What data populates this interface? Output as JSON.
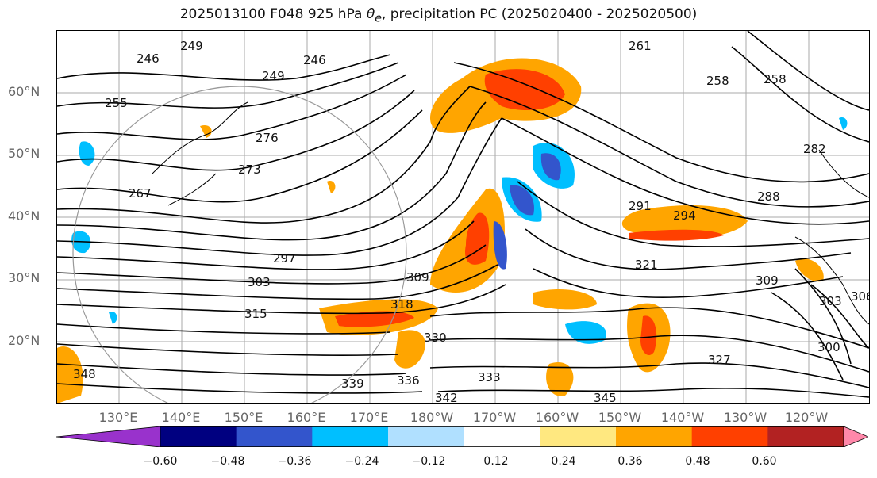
{
  "title": {
    "prefix": "2025013100 F048 925 hPa ",
    "symbol": "θ",
    "subscript": "e",
    "suffix": ", precipitation PC (2025020400 - 2025020500)"
  },
  "map": {
    "lat_labels": [
      "60°N",
      "50°N",
      "40°N",
      "30°N",
      "20°N"
    ],
    "lon_labels": [
      "130°E",
      "140°E",
      "150°E",
      "160°E",
      "170°E",
      "180°W",
      "170°W",
      "160°W",
      "150°W",
      "140°W",
      "130°W",
      "120°W"
    ],
    "contour_labels": [
      "246",
      "249",
      "246",
      "249",
      "255",
      "258",
      "267",
      "273",
      "276",
      "291",
      "294",
      "297",
      "303",
      "309",
      "315",
      "318",
      "321",
      "327",
      "330",
      "333",
      "336",
      "339",
      "342",
      "345",
      "348",
      "300",
      "303",
      "306",
      "309",
      "288",
      "282",
      "258",
      "261"
    ]
  },
  "colorbar": {
    "ticks": [
      "−0.60",
      "−0.48",
      "−0.36",
      "−0.24",
      "−0.12",
      "0.12",
      "0.24",
      "0.36",
      "0.48",
      "0.60"
    ],
    "colors": [
      "#9932CC",
      "#000080",
      "#3355CC",
      "#00BFFF",
      "#B0E0FF",
      "#FFFFFF",
      "#FFE880",
      "#FFA500",
      "#FF4000",
      "#B22222",
      "#FF88AA"
    ]
  }
}
